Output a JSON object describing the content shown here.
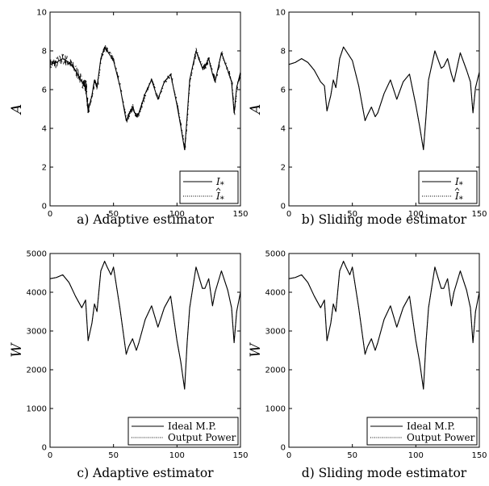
{
  "chart_data": [
    {
      "type": "line",
      "caption": "a) Adaptive estimator",
      "ylabel": "A",
      "xlim": [
        0,
        150
      ],
      "ylim": [
        0,
        10
      ],
      "xticks": [
        "0",
        "50",
        "100",
        "150"
      ],
      "yticks": [
        "0",
        "2",
        "4",
        "6",
        "8",
        "10"
      ],
      "legend_position": "bottom-right",
      "noisy_estimate": true,
      "x": [
        0,
        5,
        10,
        15,
        20,
        25,
        28,
        30,
        33,
        35,
        37,
        40,
        43,
        45,
        48,
        50,
        55,
        60,
        62,
        65,
        68,
        70,
        75,
        80,
        85,
        90,
        95,
        100,
        103,
        106,
        108,
        110,
        115,
        120,
        122,
        125,
        128,
        130,
        135,
        140,
        143,
        145,
        147,
        150
      ],
      "series": [
        {
          "name": "I_*",
          "label_main": "I",
          "label_sub": "*",
          "hat": false,
          "style": "solid",
          "values": [
            7.3,
            7.4,
            7.6,
            7.4,
            7.0,
            6.4,
            6.2,
            4.9,
            5.7,
            6.5,
            6.1,
            7.6,
            8.2,
            8.0,
            7.7,
            7.5,
            6.2,
            4.4,
            4.7,
            5.1,
            4.6,
            4.8,
            5.8,
            6.5,
            5.5,
            6.4,
            6.8,
            5.2,
            4.1,
            2.9,
            4.6,
            6.5,
            8.0,
            7.1,
            7.2,
            7.6,
            6.8,
            6.4,
            7.9,
            7.0,
            6.4,
            4.8,
            6.1,
            6.9
          ]
        },
        {
          "name": "Î_*",
          "label_main": "I",
          "label_sub": "*",
          "hat": true,
          "style": "dotted",
          "values": [
            7.3,
            7.4,
            7.6,
            7.4,
            7.0,
            6.4,
            6.2,
            4.9,
            5.7,
            6.5,
            6.1,
            7.6,
            8.2,
            8.0,
            7.7,
            7.5,
            6.2,
            4.4,
            4.7,
            5.1,
            4.6,
            4.8,
            5.8,
            6.5,
            5.5,
            6.4,
            6.8,
            5.2,
            4.1,
            2.9,
            4.6,
            6.5,
            8.0,
            7.1,
            7.2,
            7.6,
            6.8,
            6.4,
            7.9,
            7.0,
            6.4,
            4.8,
            6.1,
            6.9
          ]
        }
      ]
    },
    {
      "type": "line",
      "caption": "b) Sliding mode estimator",
      "ylabel": "A",
      "xlim": [
        0,
        150
      ],
      "ylim": [
        0,
        10
      ],
      "xticks": [
        "0",
        "50",
        "100",
        "150"
      ],
      "yticks": [
        "0",
        "2",
        "4",
        "6",
        "8",
        "10"
      ],
      "legend_position": "bottom-right",
      "noisy_estimate": false,
      "x": [
        0,
        5,
        10,
        15,
        20,
        25,
        28,
        30,
        33,
        35,
        37,
        40,
        43,
        45,
        48,
        50,
        55,
        60,
        62,
        65,
        68,
        70,
        75,
        80,
        85,
        90,
        95,
        100,
        103,
        106,
        108,
        110,
        115,
        120,
        122,
        125,
        128,
        130,
        135,
        140,
        143,
        145,
        147,
        150
      ],
      "series": [
        {
          "name": "I_*",
          "label_main": "I",
          "label_sub": "*",
          "hat": false,
          "style": "solid",
          "values": [
            7.3,
            7.4,
            7.6,
            7.4,
            7.0,
            6.4,
            6.2,
            4.9,
            5.7,
            6.5,
            6.1,
            7.6,
            8.2,
            8.0,
            7.7,
            7.5,
            6.2,
            4.4,
            4.7,
            5.1,
            4.6,
            4.8,
            5.8,
            6.5,
            5.5,
            6.4,
            6.8,
            5.2,
            4.1,
            2.9,
            4.6,
            6.5,
            8.0,
            7.1,
            7.2,
            7.6,
            6.8,
            6.4,
            7.9,
            7.0,
            6.4,
            4.8,
            6.1,
            6.9
          ]
        },
        {
          "name": "Î_*",
          "label_main": "I",
          "label_sub": "*",
          "hat": true,
          "style": "dotted",
          "values": [
            7.3,
            7.4,
            7.6,
            7.4,
            7.0,
            6.4,
            6.2,
            4.9,
            5.7,
            6.5,
            6.1,
            7.6,
            8.2,
            8.0,
            7.7,
            7.5,
            6.2,
            4.4,
            4.7,
            5.1,
            4.6,
            4.8,
            5.8,
            6.5,
            5.5,
            6.4,
            6.8,
            5.2,
            4.1,
            2.9,
            4.6,
            6.5,
            8.0,
            7.1,
            7.2,
            7.6,
            6.8,
            6.4,
            7.9,
            7.0,
            6.4,
            4.8,
            6.1,
            6.9
          ]
        }
      ]
    },
    {
      "type": "line",
      "caption": "c) Adaptive estimator",
      "ylabel": "W",
      "xlim": [
        0,
        150
      ],
      "ylim": [
        0,
        5000
      ],
      "xticks": [
        "0",
        "50",
        "100",
        "150"
      ],
      "yticks": [
        "0",
        "1000",
        "2000",
        "3000",
        "4000",
        "5000"
      ],
      "legend_position": "bottom-right",
      "noisy_estimate": false,
      "x": [
        0,
        5,
        10,
        15,
        20,
        25,
        28,
        30,
        33,
        35,
        37,
        40,
        43,
        45,
        48,
        50,
        55,
        60,
        62,
        65,
        68,
        70,
        75,
        80,
        85,
        90,
        95,
        100,
        103,
        106,
        108,
        110,
        115,
        120,
        122,
        125,
        128,
        130,
        135,
        140,
        143,
        145,
        147,
        150
      ],
      "series": [
        {
          "name": "Ideal M.P.",
          "label_main": "Ideal M.P.",
          "label_sub": "",
          "hat": false,
          "style": "solid",
          "values": [
            4350,
            4380,
            4450,
            4250,
            3900,
            3600,
            3800,
            2750,
            3200,
            3700,
            3500,
            4550,
            4800,
            4650,
            4450,
            4650,
            3600,
            2400,
            2600,
            2800,
            2500,
            2700,
            3300,
            3650,
            3100,
            3600,
            3900,
            2750,
            2200,
            1500,
            2700,
            3600,
            4650,
            4100,
            4100,
            4350,
            3650,
            4000,
            4550,
            4050,
            3600,
            2700,
            3500,
            4000
          ]
        },
        {
          "name": "Output Power",
          "label_main": "Output Power",
          "label_sub": "",
          "hat": false,
          "style": "dotted",
          "values": [
            4350,
            4380,
            4450,
            4250,
            3900,
            3600,
            3800,
            2750,
            3200,
            3700,
            3500,
            4550,
            4800,
            4650,
            4450,
            4650,
            3600,
            2400,
            2600,
            2800,
            2500,
            2700,
            3300,
            3650,
            3100,
            3600,
            3900,
            2750,
            2200,
            1500,
            2700,
            3600,
            4650,
            4100,
            4100,
            4350,
            3650,
            4000,
            4550,
            4050,
            3600,
            2700,
            3500,
            4000
          ]
        }
      ]
    },
    {
      "type": "line",
      "caption": "d) Sliding mode estimator",
      "ylabel": "W",
      "xlim": [
        0,
        150
      ],
      "ylim": [
        0,
        5000
      ],
      "xticks": [
        "0",
        "50",
        "100",
        "150"
      ],
      "yticks": [
        "0",
        "1000",
        "2000",
        "3000",
        "4000",
        "5000"
      ],
      "legend_position": "bottom-right",
      "noisy_estimate": false,
      "x": [
        0,
        5,
        10,
        15,
        20,
        25,
        28,
        30,
        33,
        35,
        37,
        40,
        43,
        45,
        48,
        50,
        55,
        60,
        62,
        65,
        68,
        70,
        75,
        80,
        85,
        90,
        95,
        100,
        103,
        106,
        108,
        110,
        115,
        120,
        122,
        125,
        128,
        130,
        135,
        140,
        143,
        145,
        147,
        150
      ],
      "series": [
        {
          "name": "Ideal M.P.",
          "label_main": "Ideal M.P.",
          "label_sub": "",
          "hat": false,
          "style": "solid",
          "values": [
            4350,
            4380,
            4450,
            4250,
            3900,
            3600,
            3800,
            2750,
            3200,
            3700,
            3500,
            4550,
            4800,
            4650,
            4450,
            4650,
            3600,
            2400,
            2600,
            2800,
            2500,
            2700,
            3300,
            3650,
            3100,
            3600,
            3900,
            2750,
            2200,
            1500,
            2700,
            3600,
            4650,
            4100,
            4100,
            4350,
            3650,
            4000,
            4550,
            4050,
            3600,
            2700,
            3500,
            4000
          ]
        },
        {
          "name": "Output Power",
          "label_main": "Output Power",
          "label_sub": "",
          "hat": false,
          "style": "dotted",
          "values": [
            4350,
            4380,
            4450,
            4250,
            3900,
            3600,
            3800,
            2750,
            3200,
            3700,
            3500,
            4550,
            4800,
            4650,
            4450,
            4650,
            3600,
            2400,
            2600,
            2800,
            2500,
            2700,
            3300,
            3650,
            3100,
            3600,
            3900,
            2750,
            2200,
            1500,
            2700,
            3600,
            4650,
            4100,
            4100,
            4350,
            3650,
            4000,
            4550,
            4050,
            3600,
            2700,
            3500,
            4000
          ]
        }
      ]
    }
  ]
}
